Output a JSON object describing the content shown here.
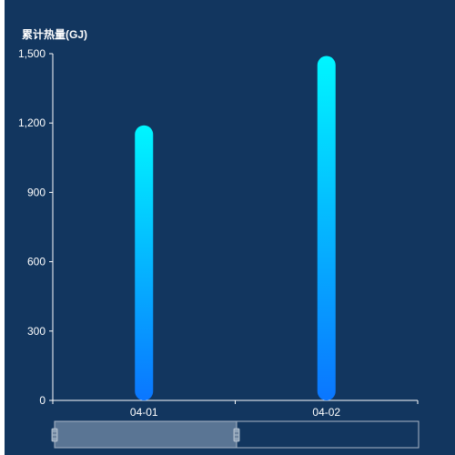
{
  "chart_data": {
    "type": "bar",
    "ylabel": "累计热量(GJ)",
    "categories": [
      "04-01",
      "04-02"
    ],
    "values": [
      1190,
      1490
    ],
    "ylim": [
      0,
      1500
    ],
    "yticks": [
      0,
      300,
      600,
      900,
      1200,
      1500
    ],
    "ytick_labels": [
      "0",
      "300",
      "600",
      "900",
      "1,200",
      "1,500"
    ],
    "grid": false,
    "legend": "none",
    "colors": {
      "background": "#12365f",
      "axis": "#ffffff",
      "bar_top": "#00f6ff",
      "bar_bottom": "#0a76ff",
      "zoom_selected": "#5a7594",
      "zoom_border": "#a9b7c7",
      "zoom_handle": "#8fa3b8"
    },
    "data_zoom": {
      "start_fraction": 0.0,
      "end_fraction": 0.5
    }
  }
}
